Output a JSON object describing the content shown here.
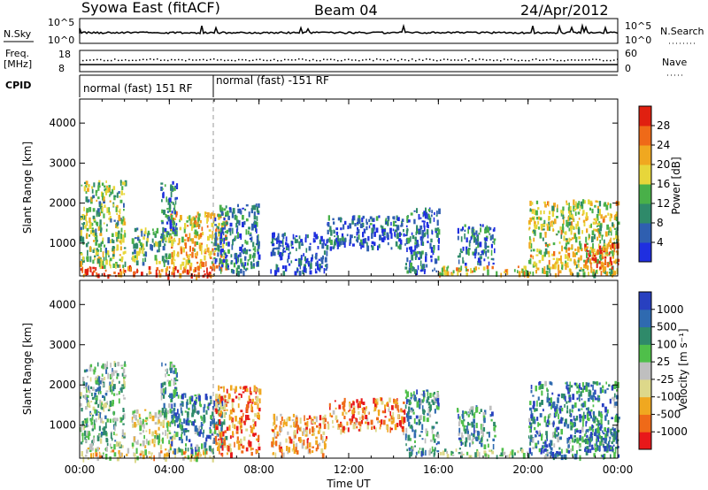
{
  "header": {
    "title": "Syowa East (fitACF)",
    "beam": "Beam 04",
    "date": "24/Apr/2012"
  },
  "side_labels": {
    "n_sky": "N.Sky",
    "n_sky_top": "10^5",
    "n_sky_bottom": "10^0",
    "freq": "Freq.",
    "freq_unit": "[MHz]",
    "freq_top": "18",
    "freq_bottom": "8",
    "cpid": "CPID",
    "n_search": "N.Search",
    "nave": "Nave",
    "right_top_top": "10^5",
    "right_top_bottom": "10^0",
    "right_mid_top": "60",
    "right_mid_bottom": "0"
  },
  "cpid_segments": [
    {
      "label": "normal (fast) 151 RF",
      "start_hour": 0,
      "end_hour": 6
    },
    {
      "label": "normal (fast) -151 RF",
      "start_hour": 6,
      "end_hour": 24
    }
  ],
  "colors": {
    "power_scale": [
      "#1f2fe0",
      "#2f5fb0",
      "#2f8a6a",
      "#49b049",
      "#e7d63a",
      "#f0a820",
      "#ef6a18",
      "#e02010"
    ],
    "velocity_scale": [
      "#e8181a",
      "#ef6a18",
      "#f0a820",
      "#ddd88a",
      "#bfbfbf",
      "#4fbf4a",
      "#2f8a6a",
      "#2f6ab0",
      "#2840c0"
    ]
  },
  "chart_data": [
    {
      "type": "heatmap",
      "name": "power",
      "ylabel": "Slant Range [km]",
      "xlabel": "",
      "x_ticks": [
        "00:00",
        "04:00",
        "08:00",
        "12:00",
        "16:00",
        "20:00",
        "00:00"
      ],
      "x_range_hours": [
        0,
        24
      ],
      "y_ticks": [
        1000,
        2000,
        3000,
        4000
      ],
      "ylim": [
        180,
        4600
      ],
      "colorbar_label": "Power [dB]",
      "colorbar_ticks": [
        4,
        8,
        12,
        16,
        20,
        24,
        28
      ],
      "colorbar_range": [
        0,
        32
      ],
      "echo_regions": [
        {
          "t0": 0.0,
          "t1": 6.0,
          "r0": 200,
          "r1": 450,
          "level": 0.85
        },
        {
          "t0": 0.0,
          "t1": 2.0,
          "r0": 450,
          "r1": 2600,
          "level": 0.45
        },
        {
          "t0": 2.3,
          "t1": 4.2,
          "r0": 500,
          "r1": 1400,
          "level": 0.4
        },
        {
          "t0": 4.0,
          "t1": 6.5,
          "r0": 400,
          "r1": 1800,
          "level": 0.65
        },
        {
          "t0": 3.6,
          "t1": 4.3,
          "r0": 1200,
          "r1": 2600,
          "level": 0.25
        },
        {
          "t0": 6.0,
          "t1": 8.0,
          "r0": 300,
          "r1": 2000,
          "level": 0.25
        },
        {
          "t0": 8.5,
          "t1": 11.0,
          "r0": 300,
          "r1": 1300,
          "level": 0.15
        },
        {
          "t0": 11.0,
          "t1": 14.5,
          "r0": 900,
          "r1": 1700,
          "level": 0.2
        },
        {
          "t0": 14.5,
          "t1": 16.0,
          "r0": 300,
          "r1": 1900,
          "level": 0.2
        },
        {
          "t0": 16.0,
          "t1": 20.0,
          "r0": 250,
          "r1": 450,
          "level": 0.6
        },
        {
          "t0": 16.8,
          "t1": 18.5,
          "r0": 500,
          "r1": 1500,
          "level": 0.25
        },
        {
          "t0": 20.0,
          "t1": 24.0,
          "r0": 250,
          "r1": 2100,
          "level": 0.55
        },
        {
          "t0": 22.5,
          "t1": 24.0,
          "r0": 400,
          "r1": 1000,
          "level": 0.85
        }
      ]
    },
    {
      "type": "heatmap",
      "name": "velocity",
      "ylabel": "Slant Range [km]",
      "xlabel": "Time UT",
      "x_ticks": [
        "00:00",
        "04:00",
        "08:00",
        "12:00",
        "16:00",
        "20:00",
        "00:00"
      ],
      "x_range_hours": [
        0,
        24
      ],
      "y_ticks": [
        1000,
        2000,
        3000,
        4000
      ],
      "ylim": [
        180,
        4600
      ],
      "colorbar_label": "Velocity [m s⁻¹]",
      "colorbar_ticks": [
        "-1000",
        "-500",
        "-100",
        "-25",
        "25",
        "100",
        "500",
        "1000"
      ],
      "echo_regions": [
        {
          "t0": 0.0,
          "t1": 6.0,
          "r0": 200,
          "r1": 450,
          "level": 0.4
        },
        {
          "t0": 0.0,
          "t1": 2.0,
          "r0": 450,
          "r1": 2600,
          "level": 0.6
        },
        {
          "t0": 2.3,
          "t1": 4.2,
          "r0": 500,
          "r1": 1400,
          "level": 0.45
        },
        {
          "t0": 4.0,
          "t1": 6.5,
          "r0": 400,
          "r1": 1800,
          "level": 0.75
        },
        {
          "t0": 3.6,
          "t1": 4.3,
          "r0": 1200,
          "r1": 2600,
          "level": 0.7
        },
        {
          "t0": 6.0,
          "t1": 8.0,
          "r0": 300,
          "r1": 2000,
          "level": 0.2
        },
        {
          "t0": 8.5,
          "t1": 11.0,
          "r0": 300,
          "r1": 1300,
          "level": 0.3
        },
        {
          "t0": 11.0,
          "t1": 14.5,
          "r0": 900,
          "r1": 1700,
          "level": 0.25
        },
        {
          "t0": 14.5,
          "t1": 16.0,
          "r0": 300,
          "r1": 1900,
          "level": 0.7
        },
        {
          "t0": 16.0,
          "t1": 20.0,
          "r0": 250,
          "r1": 450,
          "level": 0.55
        },
        {
          "t0": 16.8,
          "t1": 18.5,
          "r0": 500,
          "r1": 1500,
          "level": 0.7
        },
        {
          "t0": 20.0,
          "t1": 24.0,
          "r0": 250,
          "r1": 2100,
          "level": 0.75
        },
        {
          "t0": 22.5,
          "t1": 24.0,
          "r0": 400,
          "r1": 1000,
          "level": 0.8
        }
      ]
    }
  ]
}
